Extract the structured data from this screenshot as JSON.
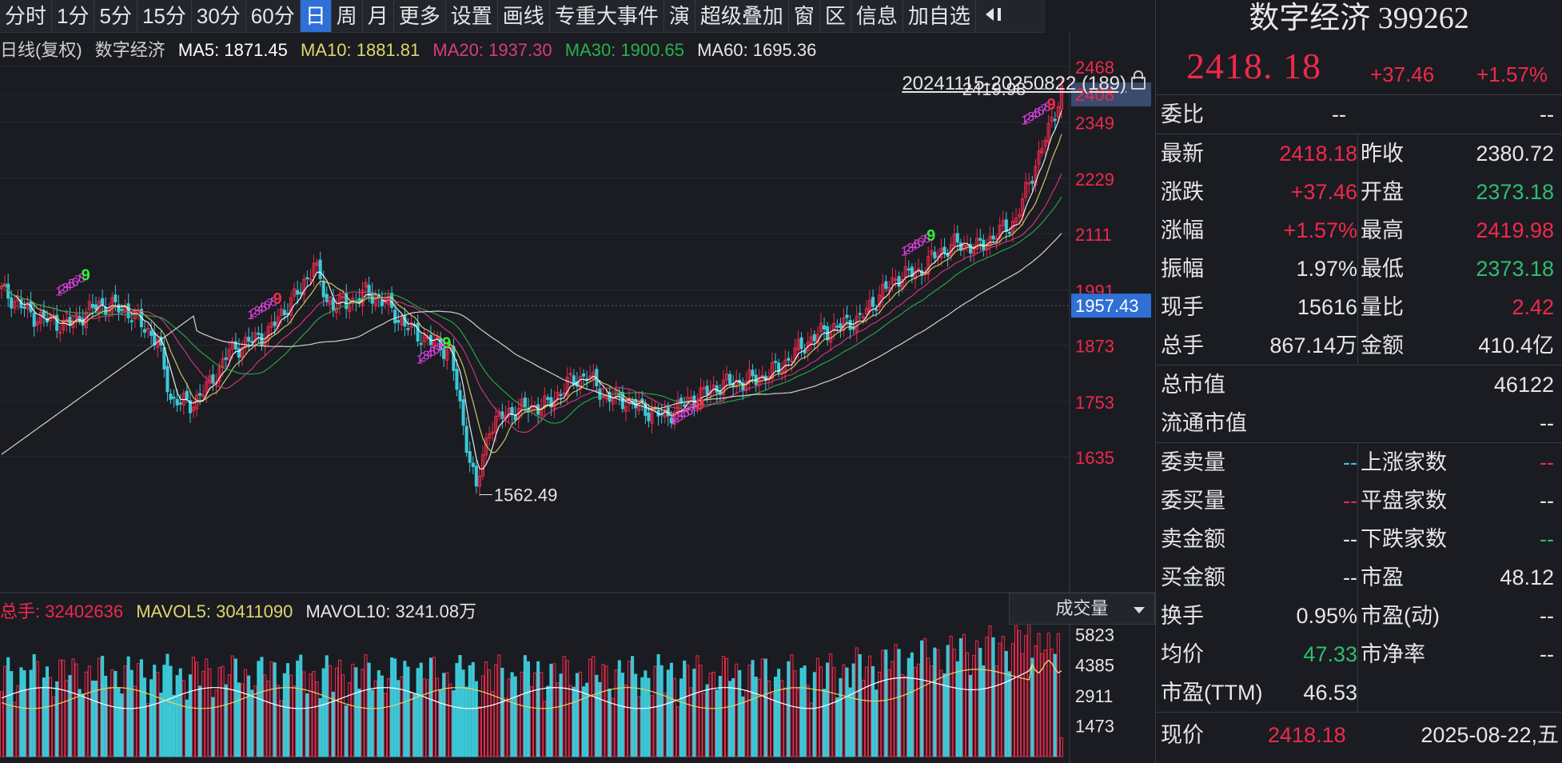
{
  "toolbar": {
    "items": [
      "分时",
      "1分",
      "5分",
      "15分",
      "30分",
      "60分",
      "日",
      "周",
      "月",
      "更多",
      "设置",
      "画线",
      "专重大事件",
      "演",
      "超级叠加",
      "窗",
      "区",
      "信息",
      "加自选"
    ],
    "active": "日"
  },
  "ma_legend": {
    "prefix": "日线(复权)",
    "name": "数字经济",
    "ma5": "MA5: 1871.45",
    "ma10": "MA10: 1881.81",
    "ma20": "MA20: 1937.30",
    "ma30": "MA30: 1900.65",
    "ma60": "MA60: 1695.36"
  },
  "period_label": "20241115-20250822 (189)",
  "annotations": {
    "high": "2419.98",
    "low": "1562.49"
  },
  "vol_legend": {
    "total": "总手: 32402636",
    "mavol5": "MAVOL5: 30411090",
    "mavol10": "MAVOL10: 3241.08万"
  },
  "vol_selector": "成交量",
  "colors": {
    "up": "#f0294a",
    "down": "#3cc7d6",
    "ma5": "#ffffff",
    "ma10": "#e0d66a",
    "ma20": "#d83c7f",
    "ma30": "#29b04a",
    "ma60": "#e6e6e6",
    "td_up": "#e040e0",
    "td_nine": "#33ee33"
  },
  "chart_data": {
    "type": "candlestick",
    "price_axis_ticks": [
      2468,
      2408,
      2349,
      2229,
      2111,
      1991,
      1873,
      1753,
      1635
    ],
    "current_price_tag": "2408",
    "cursor_tag": "1957.43",
    "volume_axis_ticks": [
      5823,
      4385,
      2911,
      1473
    ],
    "high": 2419.98,
    "low": 1562.49,
    "last_close": 2418.18
  },
  "panel": {
    "title": "数字经济 399262",
    "price": "2418. 18",
    "change": "+37.46",
    "change_pct": "+1.57%",
    "weibi_label": "委比",
    "weibi_v1": "--",
    "weibi_v2": "--",
    "rows": [
      {
        "l": "最新",
        "v": "2418.18",
        "vc": "red",
        "l2": "昨收",
        "v2": "2380.72",
        "v2c": "white"
      },
      {
        "l": "涨跌",
        "v": "+37.46",
        "vc": "red",
        "l2": "开盘",
        "v2": "2373.18",
        "v2c": "green"
      },
      {
        "l": "涨幅",
        "v": "+1.57%",
        "vc": "red",
        "l2": "最高",
        "v2": "2419.98",
        "v2c": "red"
      },
      {
        "l": "振幅",
        "v": "1.97%",
        "vc": "white",
        "l2": "最低",
        "v2": "2373.18",
        "v2c": "green"
      },
      {
        "l": "现手",
        "v": "15616",
        "vc": "white",
        "l2": "量比",
        "v2": "2.42",
        "v2c": "red"
      },
      {
        "l": "总手",
        "v": "867.14万",
        "vc": "white",
        "l2": "金额",
        "v2": "410.4亿",
        "v2c": "white"
      }
    ],
    "mktcap_label": "总市值",
    "mktcap": "46122",
    "float_label": "流通市值",
    "float": "--",
    "rows2": [
      {
        "l": "委卖量",
        "v": "--",
        "vc": "cyan",
        "l2": "上涨家数",
        "v2": "--",
        "v2c": "red"
      },
      {
        "l": "委买量",
        "v": "--",
        "vc": "red",
        "l2": "平盘家数",
        "v2": "--",
        "v2c": "white"
      },
      {
        "l": "卖金额",
        "v": "--",
        "vc": "white",
        "l2": "下跌家数",
        "v2": "--",
        "v2c": "green"
      },
      {
        "l": "买金额",
        "v": "--",
        "vc": "white",
        "l2": "市盈",
        "v2": "48.12",
        "v2c": "white"
      },
      {
        "l": "换手",
        "v": "0.95%",
        "vc": "white",
        "l2": "市盈(动)",
        "v2": "--",
        "v2c": "white"
      },
      {
        "l": "均价",
        "v": "47.33",
        "vc": "green",
        "l2": "市净率",
        "v2": "--",
        "v2c": "white"
      },
      {
        "l": "市盈(TTM)",
        "v": "46.53",
        "vc": "white",
        "l2": "",
        "v2": "",
        "v2c": "white"
      }
    ],
    "now_label": "现价",
    "now_value": "2418.18",
    "date": "2025-08-22,五"
  }
}
